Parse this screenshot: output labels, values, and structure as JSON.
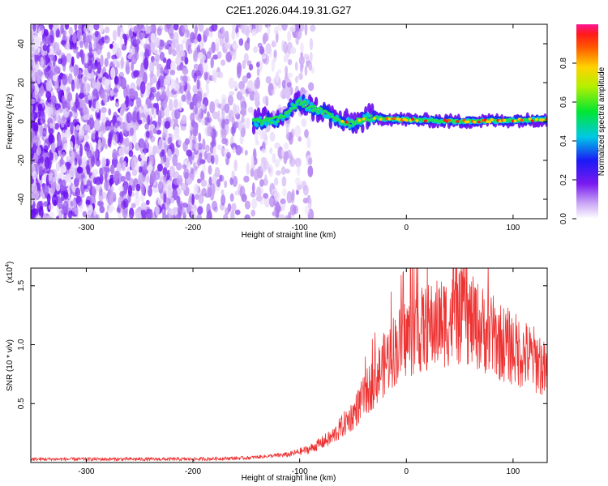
{
  "title": "C2E1.2026.044.19.31.G27",
  "chart_data": [
    {
      "type": "heatmap",
      "title": "C2E1.2026.044.19.31.G27",
      "xlabel": "Height of straight line (km)",
      "ylabel": "Frequency (Hz)",
      "xlim": [
        -352,
        132
      ],
      "ylim": [
        -50,
        50
      ],
      "xticks": [
        -300,
        -200,
        -100,
        0,
        100
      ],
      "yticks": [
        -40,
        -20,
        0,
        20,
        40
      ],
      "colorbar": {
        "label": "Normalized spectral amplitude",
        "range": [
          0,
          1
        ],
        "ticks": [
          0.0,
          0.2,
          0.4,
          0.6,
          0.8
        ]
      },
      "ridge": {
        "description": "strong signal band near 0 Hz",
        "points": [
          {
            "x": -143,
            "y": 0
          },
          {
            "x": -120,
            "y": 1
          },
          {
            "x": -100,
            "y": 10
          },
          {
            "x": -75,
            "y": 4
          },
          {
            "x": -55,
            "y": -1
          },
          {
            "x": -35,
            "y": 2
          },
          {
            "x": 0,
            "y": 1
          },
          {
            "x": 50,
            "y": 0
          },
          {
            "x": 132,
            "y": 1
          }
        ]
      }
    },
    {
      "type": "line",
      "xlabel": "Height of straight line (km)",
      "ylabel": "SNR (10 * v/v)",
      "multiplier_label": "(x10",
      "multiplier_exp": "4",
      "multiplier_close": ")",
      "xlim": [
        -352,
        132
      ],
      "ylim": [
        0,
        1.65
      ],
      "xticks": [
        -300,
        -200,
        -100,
        0,
        100
      ],
      "yticks": [
        0.5,
        1.0,
        1.5
      ],
      "ytick_labels": [
        "0.5",
        "1.0",
        "1.5"
      ],
      "color": "#ee3333",
      "envelope": [
        {
          "x": -352,
          "y": 0.03
        },
        {
          "x": -200,
          "y": 0.03
        },
        {
          "x": -150,
          "y": 0.04
        },
        {
          "x": -110,
          "y": 0.07
        },
        {
          "x": -90,
          "y": 0.12
        },
        {
          "x": -70,
          "y": 0.22
        },
        {
          "x": -50,
          "y": 0.42
        },
        {
          "x": -30,
          "y": 0.72
        },
        {
          "x": -15,
          "y": 0.95
        },
        {
          "x": 0,
          "y": 1.1
        },
        {
          "x": 20,
          "y": 1.18
        },
        {
          "x": 40,
          "y": 1.25
        },
        {
          "x": 55,
          "y": 1.27
        },
        {
          "x": 70,
          "y": 1.18
        },
        {
          "x": 90,
          "y": 1.05
        },
        {
          "x": 110,
          "y": 0.95
        },
        {
          "x": 125,
          "y": 0.88
        },
        {
          "x": 132,
          "y": 0.75
        }
      ]
    }
  ]
}
